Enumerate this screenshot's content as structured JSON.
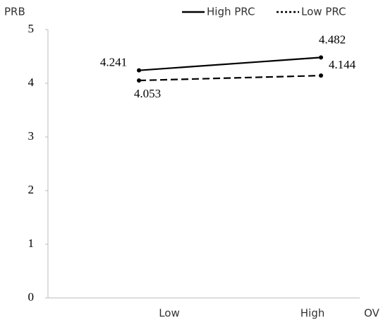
{
  "chart_data": {
    "type": "line",
    "y_label": "PRB",
    "x_label": "OV",
    "categories": [
      "Low",
      "High"
    ],
    "series": [
      {
        "name": "High PRC",
        "color": "#000000",
        "dash": "solid",
        "values": [
          4.241,
          4.482
        ]
      },
      {
        "name": "Low PRC",
        "color": "#000000",
        "dash": "dashed",
        "values": [
          4.053,
          4.144
        ]
      }
    ],
    "ylim": [
      0,
      5
    ],
    "yticks": [
      0,
      1,
      2,
      3,
      4,
      5
    ],
    "grid": false,
    "legend": "top-right"
  }
}
